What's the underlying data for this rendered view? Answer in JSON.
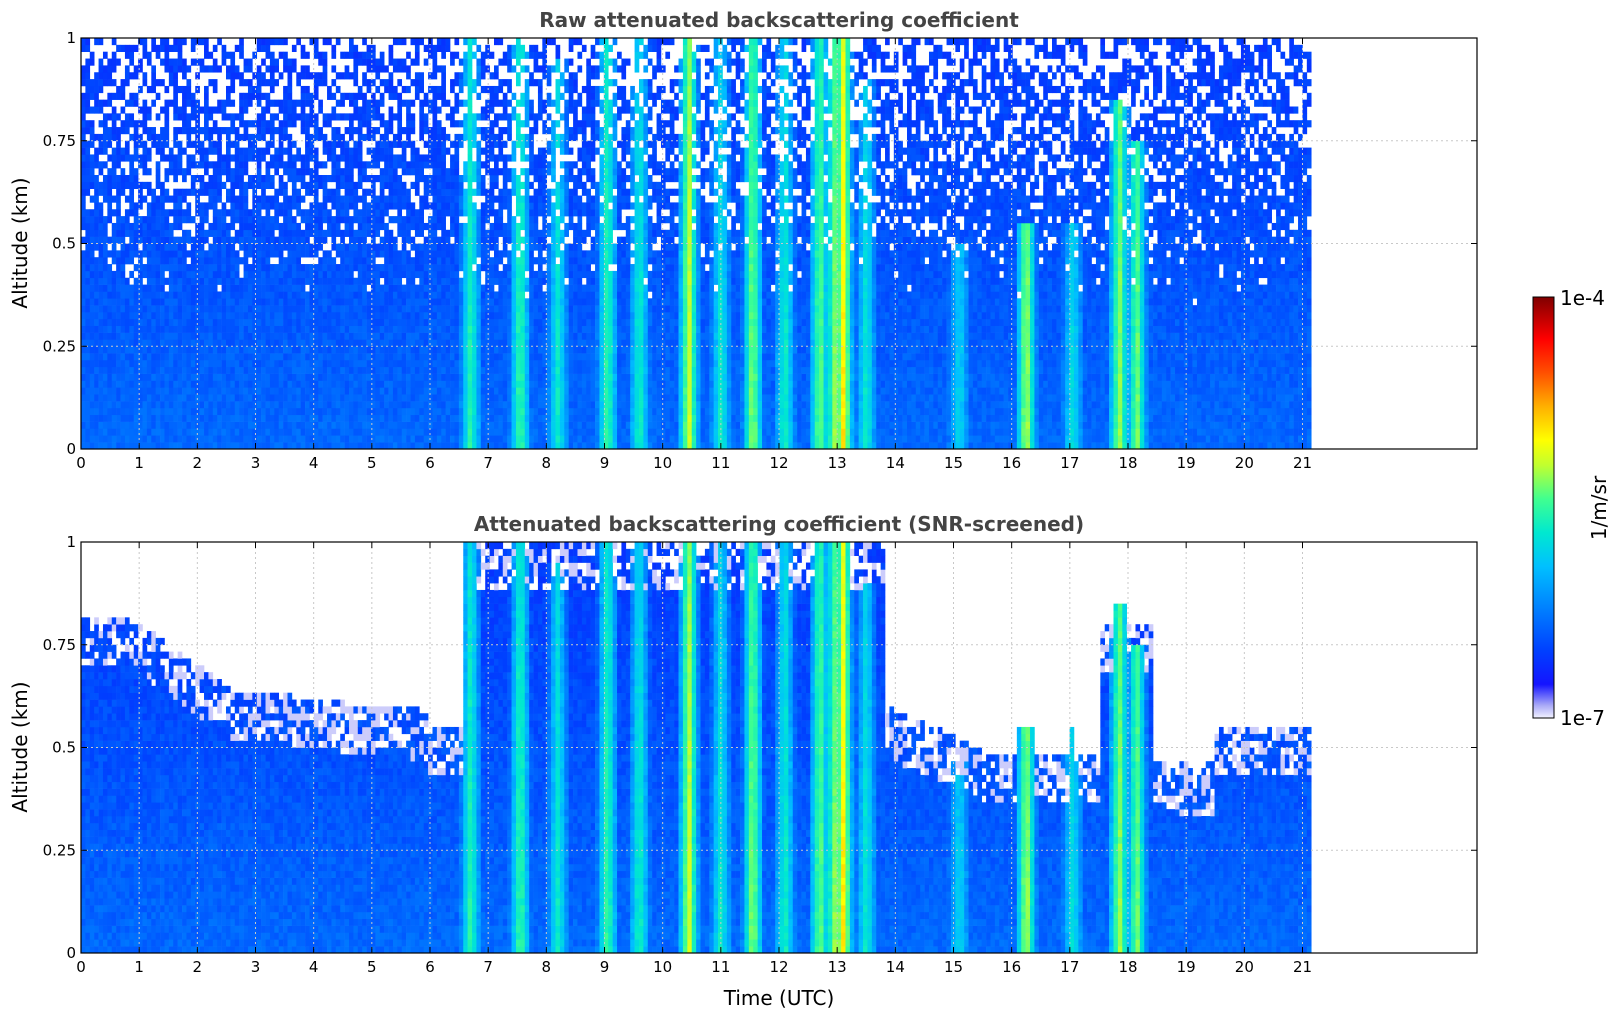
{
  "chart_data": [
    {
      "type": "heatmap",
      "title": "Raw attenuated backscattering coefficient",
      "xlabel": "",
      "ylabel": "Altitude (km)",
      "xlim": [
        0,
        24
      ],
      "ylim": [
        0,
        1
      ],
      "x_ticks": [
        "0",
        "1",
        "2",
        "3",
        "4",
        "5",
        "6",
        "7",
        "8",
        "9",
        "10",
        "11",
        "12",
        "13",
        "14",
        "15",
        "16",
        "17",
        "18",
        "19",
        "20",
        "21"
      ],
      "x_tick_values": [
        0,
        1,
        2,
        3,
        4,
        5,
        6,
        7,
        8,
        9,
        10,
        11,
        12,
        13,
        14,
        15,
        16,
        17,
        18,
        19,
        20,
        21
      ],
      "y_ticks": [
        "0",
        "0.25",
        "0.5",
        "0.75",
        "1"
      ],
      "y_tick_values": [
        0,
        0.25,
        0.5,
        0.75,
        1
      ],
      "grid": true,
      "data_end_time": 21.15,
      "screened": false
    },
    {
      "type": "heatmap",
      "title": "Attenuated backscattering coefficient (SNR-screened)",
      "xlabel": "Time (UTC)",
      "ylabel": "Altitude (km)",
      "xlim": [
        0,
        24
      ],
      "ylim": [
        0,
        1
      ],
      "x_ticks": [
        "0",
        "1",
        "2",
        "3",
        "4",
        "5",
        "6",
        "7",
        "8",
        "9",
        "10",
        "11",
        "12",
        "13",
        "14",
        "15",
        "16",
        "17",
        "18",
        "19",
        "20",
        "21"
      ],
      "x_tick_values": [
        0,
        1,
        2,
        3,
        4,
        5,
        6,
        7,
        8,
        9,
        10,
        11,
        12,
        13,
        14,
        15,
        16,
        17,
        18,
        19,
        20,
        21
      ],
      "y_ticks": [
        "0",
        "0.25",
        "0.5",
        "0.75",
        "1"
      ],
      "y_tick_values": [
        0,
        0.25,
        0.5,
        0.75,
        1
      ],
      "grid": true,
      "data_end_time": 21.15,
      "screened": true
    }
  ],
  "colorbar": {
    "label": "1/m/sr",
    "max_label": "1e-4",
    "min_label": "1e-7",
    "scale": "log",
    "range": [
      1e-07,
      0.0001
    ],
    "colormap": [
      "#f2f2ff",
      "#a9a9f7",
      "#1414ff",
      "#0040ff",
      "#0080ff",
      "#00c0ff",
      "#00e8d0",
      "#40ff90",
      "#c0ff30",
      "#ffff00",
      "#ffb000",
      "#ff5000",
      "#ff0000",
      "#800000"
    ]
  },
  "features": {
    "columns": [
      {
        "t": 6.7,
        "alt": 1.0,
        "strength": 0.55
      },
      {
        "t": 7.55,
        "alt": 1.0,
        "strength": 0.6
      },
      {
        "t": 8.2,
        "alt": 0.95,
        "strength": 0.45
      },
      {
        "t": 9.05,
        "alt": 1.0,
        "strength": 0.6
      },
      {
        "t": 9.6,
        "alt": 1.0,
        "strength": 0.5
      },
      {
        "t": 10.45,
        "alt": 1.0,
        "strength": 0.85
      },
      {
        "t": 11.0,
        "alt": 1.0,
        "strength": 0.45
      },
      {
        "t": 11.55,
        "alt": 1.0,
        "strength": 0.75
      },
      {
        "t": 12.1,
        "alt": 1.0,
        "strength": 0.5
      },
      {
        "t": 12.7,
        "alt": 1.0,
        "strength": 0.7
      },
      {
        "t": 12.95,
        "alt": 1.0,
        "strength": 0.7
      },
      {
        "t": 13.1,
        "alt": 1.0,
        "strength": 1.0
      },
      {
        "t": 13.5,
        "alt": 0.9,
        "strength": 0.45
      },
      {
        "t": 15.1,
        "alt": 0.5,
        "strength": 0.35
      },
      {
        "t": 16.25,
        "alt": 0.55,
        "strength": 0.8
      },
      {
        "t": 17.05,
        "alt": 0.55,
        "strength": 0.4
      },
      {
        "t": 17.85,
        "alt": 0.85,
        "strength": 0.75
      },
      {
        "t": 18.15,
        "alt": 0.75,
        "strength": 0.7
      }
    ]
  }
}
